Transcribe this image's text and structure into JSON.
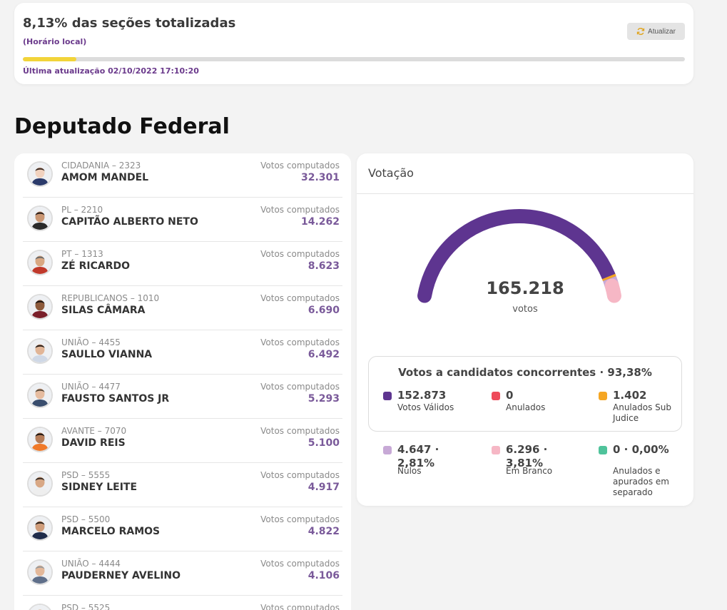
{
  "header": {
    "title": "8,13% das seções totalizadas",
    "subtitle": "(Horário local)",
    "refresh_label": "Atualizar",
    "progress_fraction": 0.0813,
    "last_update": "Última atualização 02/10/2022 17:10:20",
    "colors": {
      "progress": "#f2d43a",
      "accent": "#6b3a8c"
    }
  },
  "section_title": "Deputado Federal",
  "candidates": [
    {
      "party": "CIDADANIA – 2323",
      "name": "AMOM MANDEL",
      "votes_label": "Votos computados",
      "votes": "32.301"
    },
    {
      "party": "PL – 2210",
      "name": "CAPITÃO ALBERTO NETO",
      "votes_label": "Votos computados",
      "votes": "14.262"
    },
    {
      "party": "PT – 1313",
      "name": "ZÉ RICARDO",
      "votes_label": "Votos computados",
      "votes": "8.623"
    },
    {
      "party": "REPUBLICANOS – 1010",
      "name": "SILAS CÂMARA",
      "votes_label": "Votos computados",
      "votes": "6.690"
    },
    {
      "party": "UNIÃO – 4455",
      "name": "SAULLO VIANNA",
      "votes_label": "Votos computados",
      "votes": "6.492"
    },
    {
      "party": "UNIÃO – 4477",
      "name": "FAUSTO SANTOS JR",
      "votes_label": "Votos computados",
      "votes": "5.293"
    },
    {
      "party": "AVANTE – 7070",
      "name": "DAVID REIS",
      "votes_label": "Votos computados",
      "votes": "5.100"
    },
    {
      "party": "PSD – 5555",
      "name": "SIDNEY LEITE",
      "votes_label": "Votos computados",
      "votes": "4.917"
    },
    {
      "party": "PSD – 5500",
      "name": "MARCELO RAMOS",
      "votes_label": "Votos computados",
      "votes": "4.822"
    },
    {
      "party": "UNIÃO – 4444",
      "name": "PAUDERNEY AVELINO",
      "votes_label": "Votos computados",
      "votes": "4.106"
    },
    {
      "party": "PSD – 5525",
      "name": "",
      "votes_label": "Votos computados",
      "votes": ""
    }
  ],
  "votacao": {
    "title": "Votação",
    "total": "165.218",
    "total_label": "votos",
    "box_title": "Votos a candidatos concorrentes · 93,38%",
    "stats": [
      {
        "value": "152.873",
        "label": "Votos Válidos",
        "color": "#5e3590",
        "count": 152873
      },
      {
        "value": "0",
        "label": "Anulados",
        "color": "#ee4a5a",
        "count": 0
      },
      {
        "value": "1.402",
        "label": "Anulados Sub Judice",
        "color": "#f5a623",
        "count": 1402
      },
      {
        "value": "4.647 · 2,81%",
        "label": "Nulos",
        "color": "#c7a9d6",
        "count": 4647
      },
      {
        "value": "6.296 · 3,81%",
        "label": "Em Branco",
        "color": "#f6b7c5",
        "count": 6296
      },
      {
        "value": "0 · 0,00%",
        "label": "Anulados e apurados em separado",
        "color": "#4fc39b",
        "count": 0
      }
    ]
  }
}
